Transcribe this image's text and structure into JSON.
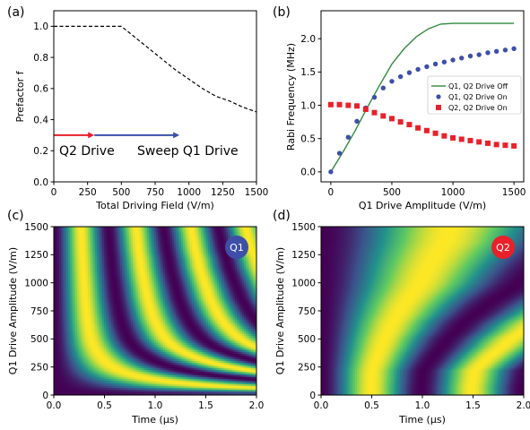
{
  "chart_data": [
    {
      "panel": "(a)",
      "type": "line",
      "xlabel": "Total Driving Field (V/m)",
      "ylabel": "Prefactor f",
      "xlim": [
        0,
        1500
      ],
      "ylim": [
        0.0,
        1.1
      ],
      "xticks": [
        0,
        250,
        500,
        750,
        1000,
        1250,
        1500
      ],
      "yticks": [
        "0.0",
        "0.2",
        "0.4",
        "0.6",
        "0.8",
        "1.0"
      ],
      "series": [
        {
          "x": [
            0,
            500,
            600,
            700,
            800,
            900,
            1000,
            1100,
            1200,
            1300,
            1400,
            1500
          ],
          "y": [
            1.0,
            1.0,
            0.93,
            0.86,
            0.79,
            0.72,
            0.66,
            0.6,
            0.55,
            0.52,
            0.48,
            0.45
          ],
          "style": "dashed",
          "color": "#000000"
        }
      ],
      "annotations": [
        {
          "text": "Q2 Drive",
          "arrow_from": 0,
          "arrow_to": 300,
          "y": 0.3,
          "color": "#e8212a"
        },
        {
          "text": "Sweep Q1 Drive",
          "arrow_from": 300,
          "arrow_to": 930,
          "y": 0.3,
          "color": "#3d4fa8"
        }
      ]
    },
    {
      "panel": "(b)",
      "type": "line",
      "xlabel": "Q1 Drive Amplitude (V/m)",
      "ylabel": "Rabi Frequency (MHz)",
      "xlim": [
        -80,
        1580
      ],
      "ylim": [
        -0.15,
        2.42
      ],
      "xticks": [
        0,
        500,
        1000,
        1500
      ],
      "yticks": [
        "0.0",
        "0.5",
        "1.0",
        "1.5",
        "2.0"
      ],
      "legend_position": "center-right",
      "series": [
        {
          "name": "Q1, Q2 Drive Off",
          "style": "line",
          "color": "#2e8a3e",
          "x": [
            0,
            100,
            200,
            300,
            400,
            500,
            600,
            700,
            800,
            900,
            1000,
            1500
          ],
          "y": [
            0.0,
            0.3,
            0.62,
            0.97,
            1.3,
            1.62,
            1.85,
            2.03,
            2.15,
            2.22,
            2.23,
            2.23
          ]
        },
        {
          "name": "Q1, Q2 Drive On",
          "style": "circle",
          "color": "#3d4fa8",
          "x": [
            0,
            71,
            143,
            214,
            286,
            357,
            429,
            500,
            571,
            643,
            714,
            786,
            857,
            929,
            1000,
            1071,
            1143,
            1214,
            1286,
            1357,
            1429,
            1500
          ],
          "y": [
            0.0,
            0.28,
            0.52,
            0.76,
            0.96,
            1.12,
            1.26,
            1.36,
            1.43,
            1.49,
            1.54,
            1.58,
            1.62,
            1.65,
            1.68,
            1.71,
            1.74,
            1.76,
            1.79,
            1.81,
            1.83,
            1.85
          ]
        },
        {
          "name": "Q2, Q2 Drive On",
          "style": "square",
          "color": "#e8212a",
          "x": [
            0,
            71,
            143,
            214,
            286,
            357,
            429,
            500,
            571,
            643,
            714,
            786,
            857,
            929,
            1000,
            1071,
            1143,
            1214,
            1286,
            1357,
            1429,
            1500
          ],
          "y": [
            1.01,
            1.01,
            1.0,
            0.99,
            0.94,
            0.89,
            0.84,
            0.8,
            0.75,
            0.71,
            0.66,
            0.62,
            0.58,
            0.54,
            0.51,
            0.49,
            0.47,
            0.45,
            0.43,
            0.41,
            0.4,
            0.39
          ]
        }
      ]
    },
    {
      "panel": "(c)",
      "type": "heatmap",
      "xlabel": "Time (μs)",
      "ylabel": "Q1 Drive Amplitude (V/m)",
      "xlim": [
        0.0,
        2.0
      ],
      "ylim": [
        0,
        1500
      ],
      "xticks": [
        "0.0",
        "0.5",
        "1.0",
        "1.5",
        "2.0"
      ],
      "yticks": [
        "0",
        "250",
        "500",
        "750",
        "1000",
        "1250",
        "1500"
      ],
      "badge": {
        "text": "Q1",
        "color": "#3d4fa8"
      },
      "colormap": "viridis"
    },
    {
      "panel": "(d)",
      "type": "heatmap",
      "xlabel": "Time (μs)",
      "ylabel": "Q1 Drive Amplitude (V/m)",
      "xlim": [
        0.0,
        2.0
      ],
      "ylim": [
        0,
        1500
      ],
      "xticks": [
        "0.0",
        "0.5",
        "1.0",
        "1.5",
        "2.0"
      ],
      "yticks": [
        "0",
        "250",
        "500",
        "750",
        "1000",
        "1250",
        "1500"
      ],
      "badge": {
        "text": "Q2",
        "color": "#e8212a"
      },
      "colormap": "viridis"
    }
  ]
}
